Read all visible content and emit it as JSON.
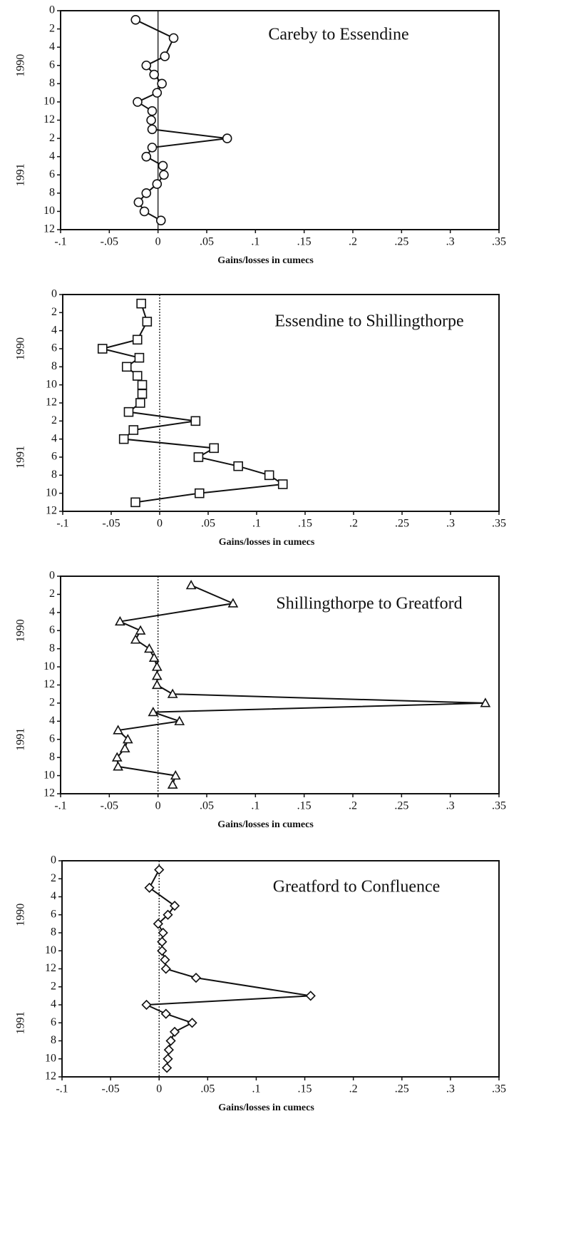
{
  "chart_data": [
    {
      "type": "line",
      "title": "Careby to Essendine",
      "xlabel": "Gains/losses in cumecs",
      "year_labels": [
        "1990",
        "1991"
      ],
      "color": "#111111",
      "marker": "circle",
      "zero_line": "solid",
      "xlim": [
        -0.1,
        0.35
      ],
      "xticks": [
        {
          "value": -0.1,
          "label": "-.1"
        },
        {
          "value": -0.05,
          "label": "-.05"
        },
        0,
        {
          "value": 0.05,
          "label": ".05"
        },
        {
          "value": 0.1,
          "label": ".1"
        },
        {
          "value": 0.15,
          "label": ".15"
        },
        {
          "value": 0.2,
          "label": ".2"
        },
        {
          "value": 0.25,
          "label": ".25"
        },
        {
          "value": 0.3,
          "label": ".3"
        },
        {
          "value": 0.35,
          "label": ".35"
        }
      ],
      "ylim": [
        0,
        24
      ],
      "y_inverted": true,
      "yticks": [
        0,
        2,
        4,
        6,
        8,
        10,
        12,
        {
          "value": 14,
          "label": "2"
        },
        {
          "value": 16,
          "label": "4"
        },
        {
          "value": 18,
          "label": "6"
        },
        {
          "value": 20,
          "label": "8"
        },
        {
          "value": 22,
          "label": "10"
        },
        {
          "value": 24,
          "label": "12"
        }
      ],
      "y": [
        1,
        3,
        5,
        6,
        7,
        8,
        9,
        10,
        11,
        12,
        13,
        14,
        15,
        16,
        17,
        18,
        19,
        20,
        21,
        22,
        23
      ],
      "values": [
        -0.023,
        0.016,
        0.007,
        -0.012,
        -0.004,
        0.004,
        -0.001,
        -0.021,
        -0.006,
        -0.007,
        -0.006,
        0.071,
        -0.006,
        -0.012,
        0.005,
        0.006,
        -0.001,
        -0.012,
        -0.02,
        -0.014,
        0.003
      ]
    },
    {
      "type": "line",
      "title": "Essendine to Shillingthorpe",
      "xlabel": "Gains/losses in cumecs",
      "year_labels": [
        "1990",
        "1991"
      ],
      "color": "#111111",
      "marker": "square",
      "zero_line": "dotted",
      "xlim": [
        -0.1,
        0.35
      ],
      "xticks": [
        {
          "value": -0.1,
          "label": "-.1"
        },
        {
          "value": -0.05,
          "label": "-.05"
        },
        0,
        {
          "value": 0.05,
          "label": ".05"
        },
        {
          "value": 0.1,
          "label": ".1"
        },
        {
          "value": 0.15,
          "label": ".15"
        },
        {
          "value": 0.2,
          "label": ".2"
        },
        {
          "value": 0.25,
          "label": ".25"
        },
        {
          "value": 0.3,
          "label": ".3"
        },
        {
          "value": 0.35,
          "label": ".35"
        }
      ],
      "ylim": [
        0,
        24
      ],
      "y_inverted": true,
      "yticks": [
        0,
        2,
        4,
        6,
        8,
        10,
        12,
        {
          "value": 14,
          "label": "2"
        },
        {
          "value": 16,
          "label": "4"
        },
        {
          "value": 18,
          "label": "6"
        },
        {
          "value": 20,
          "label": "8"
        },
        {
          "value": 22,
          "label": "10"
        },
        {
          "value": 24,
          "label": "12"
        }
      ],
      "y": [
        1,
        3,
        5,
        6,
        7,
        8,
        9,
        10,
        11,
        12,
        13,
        14,
        15,
        16,
        17,
        18,
        19,
        20,
        21,
        22,
        23
      ],
      "values": [
        -0.019,
        -0.013,
        -0.023,
        -0.059,
        -0.021,
        -0.034,
        -0.023,
        -0.018,
        -0.018,
        -0.02,
        -0.032,
        0.037,
        -0.027,
        -0.037,
        0.056,
        0.04,
        0.081,
        0.113,
        0.127,
        0.041,
        -0.025
      ]
    },
    {
      "type": "line",
      "title": "Shillingthorpe to Greatford",
      "xlabel": "Gains/losses in cumecs",
      "year_labels": [
        "1990",
        "1991"
      ],
      "color": "#111111",
      "marker": "triangle",
      "zero_line": "dotted",
      "xlim": [
        -0.1,
        0.35
      ],
      "xticks": [
        {
          "value": -0.1,
          "label": "-.1"
        },
        {
          "value": -0.05,
          "label": "-.05"
        },
        0,
        {
          "value": 0.05,
          "label": ".05"
        },
        {
          "value": 0.1,
          "label": ".1"
        },
        {
          "value": 0.15,
          "label": ".15"
        },
        {
          "value": 0.2,
          "label": ".2"
        },
        {
          "value": 0.25,
          "label": ".25"
        },
        {
          "value": 0.3,
          "label": ".3"
        },
        {
          "value": 0.35,
          "label": ".35"
        }
      ],
      "ylim": [
        0,
        24
      ],
      "y_inverted": true,
      "yticks": [
        0,
        2,
        4,
        6,
        8,
        10,
        12,
        {
          "value": 14,
          "label": "2"
        },
        {
          "value": 16,
          "label": "4"
        },
        {
          "value": 18,
          "label": "6"
        },
        {
          "value": 20,
          "label": "8"
        },
        {
          "value": 22,
          "label": "10"
        },
        {
          "value": 24,
          "label": "12"
        }
      ],
      "y": [
        1,
        3,
        5,
        6,
        7,
        8,
        9,
        10,
        11,
        12,
        13,
        14,
        15,
        16,
        17,
        18,
        19,
        20,
        21,
        22,
        23
      ],
      "values": [
        0.034,
        0.077,
        -0.039,
        -0.018,
        -0.023,
        -0.009,
        -0.004,
        -0.001,
        -0.001,
        -0.001,
        0.015,
        0.336,
        -0.005,
        0.022,
        -0.041,
        -0.031,
        -0.034,
        -0.042,
        -0.041,
        0.018,
        0.015
      ]
    },
    {
      "type": "line",
      "title": "Greatford to Confluence",
      "xlabel": "Gains/losses in cumecs",
      "year_labels": [
        "1990",
        "1991"
      ],
      "color": "#111111",
      "marker": "diamond",
      "zero_line": "dotted",
      "xlim": [
        -0.1,
        0.35
      ],
      "xticks": [
        {
          "value": -0.1,
          "label": "-.1"
        },
        {
          "value": -0.05,
          "label": "-.05"
        },
        0,
        {
          "value": 0.05,
          "label": ".05"
        },
        {
          "value": 0.1,
          "label": ".1"
        },
        {
          "value": 0.15,
          "label": ".15"
        },
        {
          "value": 0.2,
          "label": ".2"
        },
        {
          "value": 0.25,
          "label": ".25"
        },
        {
          "value": 0.3,
          "label": ".3"
        },
        {
          "value": 0.35,
          "label": ".35"
        }
      ],
      "ylim": [
        0,
        24
      ],
      "y_inverted": true,
      "yticks": [
        0,
        2,
        4,
        6,
        8,
        10,
        12,
        {
          "value": 14,
          "label": "2"
        },
        {
          "value": 16,
          "label": "4"
        },
        {
          "value": 18,
          "label": "6"
        },
        {
          "value": 20,
          "label": "8"
        },
        {
          "value": 22,
          "label": "10"
        },
        {
          "value": 24,
          "label": "12"
        }
      ],
      "y": [
        1,
        3,
        5,
        6,
        7,
        8,
        9,
        10,
        11,
        12,
        13,
        15,
        16,
        17,
        18,
        19,
        20,
        21,
        22,
        23
      ],
      "values": [
        0,
        -0.01,
        0.016,
        0.009,
        -0.001,
        0.004,
        0.003,
        0.003,
        0.006,
        0.007,
        0.038,
        0.156,
        -0.013,
        0.007,
        0.034,
        0.016,
        0.012,
        0.01,
        0.009,
        0.008
      ]
    }
  ]
}
